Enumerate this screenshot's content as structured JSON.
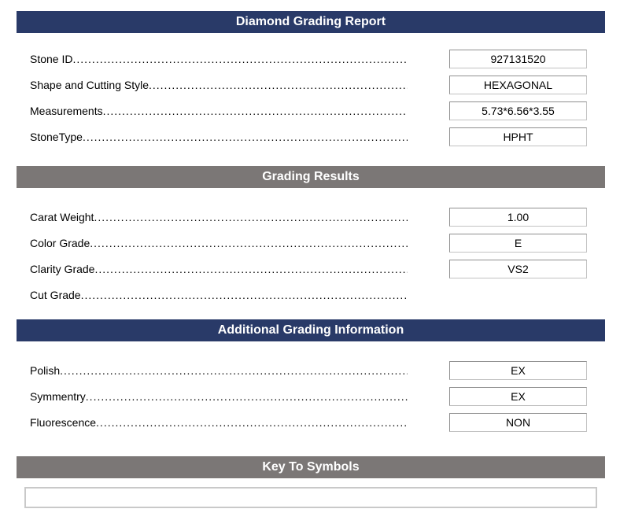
{
  "colors": {
    "header_navy": "#293a68",
    "header_gray": "#7b7776",
    "box_border": "#8f8f8f",
    "text": "#000000"
  },
  "sections": [
    {
      "header": "Diamond Grading Report",
      "fields": [
        {
          "label": "Stone ID",
          "value": "927131520"
        },
        {
          "label": "Shape and Cutting Style",
          "value": "HEXAGONAL"
        },
        {
          "label": "Measurements",
          "value": "5.73*6.56*3.55"
        },
        {
          "label": "StoneType",
          "value": "HPHT"
        }
      ]
    },
    {
      "header": "Grading Results",
      "fields": [
        {
          "label": "Carat Weight",
          "value": "1.00"
        },
        {
          "label": "Color Grade",
          "value": "E"
        },
        {
          "label": "Clarity Grade",
          "value": "VS2"
        },
        {
          "label": "Cut Grade",
          "value": ""
        }
      ]
    },
    {
      "header": "Additional Grading Information",
      "fields": [
        {
          "label": "Polish",
          "value": "EX"
        },
        {
          "label": "Symmentry",
          "value": "EX"
        },
        {
          "label": "Fluorescence",
          "value": "NON"
        }
      ]
    },
    {
      "header": "Key To Symbols",
      "fields": []
    }
  ],
  "key_to_symbols_box": {
    "value": ""
  }
}
